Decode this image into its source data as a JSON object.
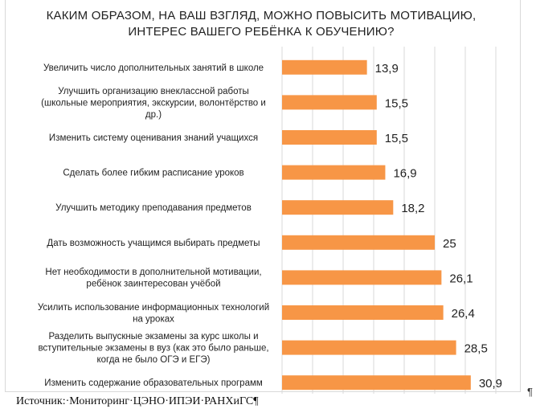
{
  "title": "КАКИМ ОБРАЗОМ, НА ВАШ ВЗГЛЯД, МОЖНО ПОВЫСИТЬ МОТИВАЦИЮ, ИНТЕРЕС ВАШЕГО РЕБЁНКА К ОБУЧЕНИЮ?",
  "source": "Источник:·Мониторинг·ЦЭНО·ИПЭИ·РАНХиГС¶",
  "pilcrow": "¶",
  "colors": {
    "bar": "#f79646",
    "grid": "#d9d9d9",
    "text": "#222222"
  },
  "chart_data": {
    "type": "bar",
    "orientation": "horizontal",
    "categories": [
      "Увеличить число дополнительных занятий в школе",
      "Улучшить организацию внеклассной работы (школьные мероприятия, экскурсии, волонтёрство и др.)",
      "Изменить систему оценивания знаний учащихся",
      "Сделать более гибким расписание уроков",
      "Улучшить методику преподавания предметов",
      "Дать возможность учащимся выбирать предметы",
      "Нет необходимости в дополнительной мотивации, ребёнок заинтересован учёбой",
      "Усилить использование информационных технологий на уроках",
      "Разделить выпускные экзамены за курс школы и вступительные экзамены в вуз (как это было раньше, когда не было ОГЭ и ЕГЭ)",
      "Изменить содержание образовательных программ"
    ],
    "category_lines": [
      [
        "Увеличить число дополнительных занятий в школе"
      ],
      [
        "Улучшить организацию внеклассной работы",
        "(школьные мероприятия, экскурсии, волонтёрство и",
        "др.)"
      ],
      [
        "Изменить систему оценивания знаний учащихся"
      ],
      [
        "Сделать более гибким расписание уроков"
      ],
      [
        "Улучшить методику преподавания предметов"
      ],
      [
        "Дать возможность учащимся выбирать предметы"
      ],
      [
        "Нет необходимости в дополнительной мотивации,",
        "ребёнок заинтересован учёбой"
      ],
      [
        "Усилить использование информационных технологий",
        "на уроках"
      ],
      [
        "Разделить выпускные экзамены за курс школы и",
        "вступительные экзамены в вуз (как это было раньше,",
        "когда не было ОГЭ и ЕГЭ)"
      ],
      [
        "Изменить содержание образовательных программ"
      ]
    ],
    "values": [
      13.9,
      15.5,
      15.5,
      16.9,
      18.2,
      25,
      26.1,
      26.4,
      28.5,
      30.9
    ],
    "value_labels": [
      "13,9",
      "15,5",
      "15,5",
      "16,9",
      "18,2",
      "25",
      "26,1",
      "26,4",
      "28,5",
      "30,9"
    ],
    "xlim": [
      0,
      35
    ],
    "gridlines": [
      0,
      5,
      10,
      15,
      20,
      25,
      30,
      35
    ],
    "grid": true,
    "legend": "none"
  }
}
